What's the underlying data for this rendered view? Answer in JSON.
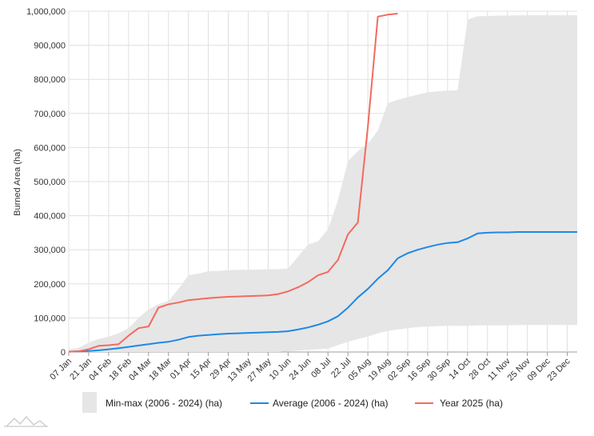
{
  "chart_data": {
    "type": "line",
    "title": "",
    "ylabel": "Burned Area (ha)",
    "xlabel": "",
    "ylim": [
      0,
      1000000
    ],
    "yticks": [
      "0",
      "100,000",
      "200,000",
      "300,000",
      "400,000",
      "500,000",
      "600,000",
      "700,000",
      "800,000",
      "900,000",
      "1,000,000"
    ],
    "xticks": [
      "07 Jan",
      "21 Jan",
      "04 Feb",
      "18 Feb",
      "04 Mar",
      "18 Mar",
      "01 Apr",
      "15 Apr",
      "29 Apr",
      "13 May",
      "27 May",
      "10 Jun",
      "24 Jun",
      "08 Jul",
      "22 Jul",
      "05 Aug",
      "19 Aug",
      "02 Sep",
      "16 Sep",
      "30 Sep",
      "14 Oct",
      "28 Oct",
      "11 Nov",
      "25 Nov",
      "09 Dec",
      "23 Dec"
    ],
    "grid": true,
    "legend_position": "bottom",
    "range_band": {
      "name": "Min-max (2006 - 2024) (ha)",
      "color": "#e6e6e6",
      "x": [
        "07 Jan",
        "14 Jan",
        "21 Jan",
        "28 Jan",
        "04 Feb",
        "11 Feb",
        "18 Feb",
        "25 Feb",
        "04 Mar",
        "11 Mar",
        "18 Mar",
        "25 Mar",
        "01 Apr",
        "08 Apr",
        "15 Apr",
        "22 Apr",
        "29 Apr",
        "06 May",
        "13 May",
        "20 May",
        "27 May",
        "03 Jun",
        "10 Jun",
        "17 Jun",
        "24 Jun",
        "01 Jul",
        "08 Jul",
        "15 Jul",
        "22 Jul",
        "29 Jul",
        "05 Aug",
        "12 Aug",
        "19 Aug",
        "26 Aug",
        "02 Sep",
        "09 Sep",
        "16 Sep",
        "23 Sep",
        "30 Sep",
        "07 Oct",
        "14 Oct",
        "21 Oct",
        "28 Oct",
        "04 Nov",
        "11 Nov",
        "18 Nov",
        "25 Nov",
        "02 Dec",
        "09 Dec",
        "16 Dec",
        "23 Dec",
        "30 Dec"
      ],
      "min": [
        0,
        0,
        0,
        0,
        0,
        0,
        0,
        0,
        0,
        0,
        0,
        0,
        0,
        0,
        0,
        0,
        0,
        0,
        0,
        0,
        0,
        0,
        2000,
        4000,
        6000,
        8000,
        10000,
        20000,
        30000,
        38000,
        45000,
        55000,
        62000,
        66000,
        70000,
        73000,
        75000,
        76000,
        77000,
        77000,
        77000,
        78000,
        78000,
        78000,
        78000,
        79000,
        79000,
        79000,
        79000,
        79000,
        79000,
        79000
      ],
      "max": [
        8000,
        12000,
        28000,
        38000,
        45000,
        55000,
        70000,
        100000,
        125000,
        140000,
        150000,
        185000,
        225000,
        230000,
        237000,
        238000,
        240000,
        241000,
        241000,
        242000,
        243000,
        243000,
        245000,
        280000,
        315000,
        325000,
        360000,
        445000,
        560000,
        590000,
        610000,
        650000,
        730000,
        740000,
        748000,
        755000,
        762000,
        765000,
        767000,
        768000,
        975000,
        985000,
        986000,
        987000,
        987000,
        988000,
        988000,
        988000,
        988000,
        988000,
        988000,
        988000
      ]
    },
    "series": [
      {
        "name": "Average (2006 - 2024) (ha)",
        "color": "#1e88e5",
        "x": [
          "07 Jan",
          "14 Jan",
          "21 Jan",
          "28 Jan",
          "04 Feb",
          "11 Feb",
          "18 Feb",
          "25 Feb",
          "04 Mar",
          "11 Mar",
          "18 Mar",
          "25 Mar",
          "01 Apr",
          "08 Apr",
          "15 Apr",
          "22 Apr",
          "29 Apr",
          "06 May",
          "13 May",
          "20 May",
          "27 May",
          "03 Jun",
          "10 Jun",
          "17 Jun",
          "24 Jun",
          "01 Jul",
          "08 Jul",
          "15 Jul",
          "22 Jul",
          "29 Jul",
          "05 Aug",
          "12 Aug",
          "19 Aug",
          "26 Aug",
          "02 Sep",
          "09 Sep",
          "16 Sep",
          "23 Sep",
          "30 Sep",
          "07 Oct",
          "14 Oct",
          "21 Oct",
          "28 Oct",
          "04 Nov",
          "11 Nov",
          "18 Nov",
          "25 Nov",
          "02 Dec",
          "09 Dec",
          "16 Dec",
          "23 Dec",
          "30 Dec"
        ],
        "values": [
          1000,
          2000,
          3000,
          5000,
          8000,
          11000,
          15000,
          19000,
          23000,
          27000,
          30000,
          36000,
          44000,
          48000,
          50000,
          52000,
          54000,
          55000,
          56000,
          57000,
          58000,
          59000,
          61000,
          66000,
          72000,
          80000,
          90000,
          105000,
          130000,
          160000,
          185000,
          215000,
          240000,
          275000,
          290000,
          300000,
          308000,
          315000,
          320000,
          322000,
          333000,
          348000,
          350000,
          351000,
          351000,
          352000,
          352000,
          352000,
          352000,
          352000,
          352000,
          352000
        ]
      },
      {
        "name": "Year 2025 (ha)",
        "color": "#f46a5e",
        "x": [
          "07 Jan",
          "14 Jan",
          "21 Jan",
          "28 Jan",
          "04 Feb",
          "11 Feb",
          "18 Feb",
          "25 Feb",
          "04 Mar",
          "11 Mar",
          "18 Mar",
          "25 Mar",
          "01 Apr",
          "08 Apr",
          "15 Apr",
          "22 Apr",
          "29 Apr",
          "06 May",
          "13 May",
          "20 May",
          "27 May",
          "03 Jun",
          "10 Jun",
          "17 Jun",
          "24 Jun",
          "01 Jul",
          "08 Jul",
          "15 Jul",
          "22 Jul",
          "29 Jul",
          "05 Aug",
          "12 Aug",
          "19 Aug",
          "26 Aug"
        ],
        "values": [
          1000,
          2000,
          8000,
          18000,
          20000,
          23000,
          48000,
          70000,
          75000,
          130000,
          140000,
          145000,
          152000,
          155000,
          158000,
          160000,
          162000,
          163000,
          164000,
          165000,
          166000,
          170000,
          178000,
          190000,
          205000,
          225000,
          235000,
          270000,
          345000,
          380000,
          660000,
          984000,
          990000,
          993000
        ]
      }
    ]
  }
}
